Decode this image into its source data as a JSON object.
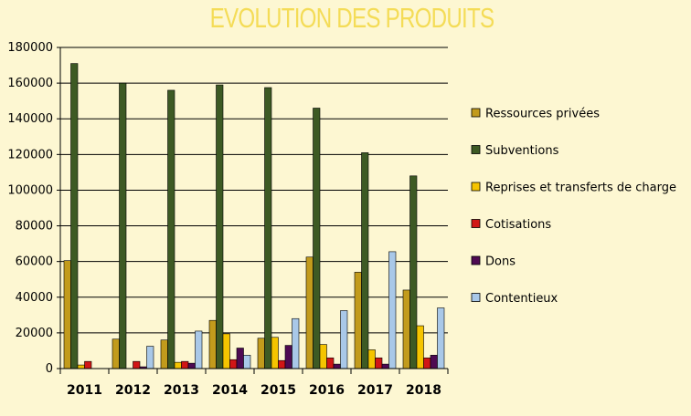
{
  "chart_data": {
    "type": "bar",
    "title": "EVOLUTION DES PRODUITS",
    "categories": [
      "2011",
      "2012",
      "2013",
      "2014",
      "2015",
      "2016",
      "2017",
      "2018"
    ],
    "ylim": [
      0,
      180000
    ],
    "yticks": [
      0,
      20000,
      40000,
      60000,
      80000,
      100000,
      120000,
      140000,
      160000,
      180000
    ],
    "grid": true,
    "legend_position": "right",
    "series": [
      {
        "name": "Ressources privées",
        "color": "#c29b1c",
        "values": [
          60500,
          16500,
          16000,
          27000,
          17000,
          62500,
          54000,
          44000
        ]
      },
      {
        "name": "Subventions",
        "color": "#3d5a24",
        "values": [
          171000,
          160000,
          156000,
          159000,
          157500,
          146000,
          121000,
          108000
        ]
      },
      {
        "name": "Reprises et transferts de charge",
        "color": "#f5c400",
        "values": [
          2000,
          0,
          3500,
          19500,
          17500,
          13500,
          10500,
          24000
        ]
      },
      {
        "name": "Cotisations",
        "color": "#d11616",
        "values": [
          4000,
          4000,
          4000,
          5000,
          4500,
          6000,
          6000,
          6000
        ]
      },
      {
        "name": "Dons",
        "color": "#4e0a52",
        "values": [
          0,
          1000,
          3000,
          11500,
          13000,
          2500,
          2500,
          7500
        ]
      },
      {
        "name": "Contentieux",
        "color": "#a9c8e8",
        "values": [
          0,
          12500,
          21000,
          7500,
          28000,
          32500,
          65500,
          34000
        ]
      }
    ]
  }
}
